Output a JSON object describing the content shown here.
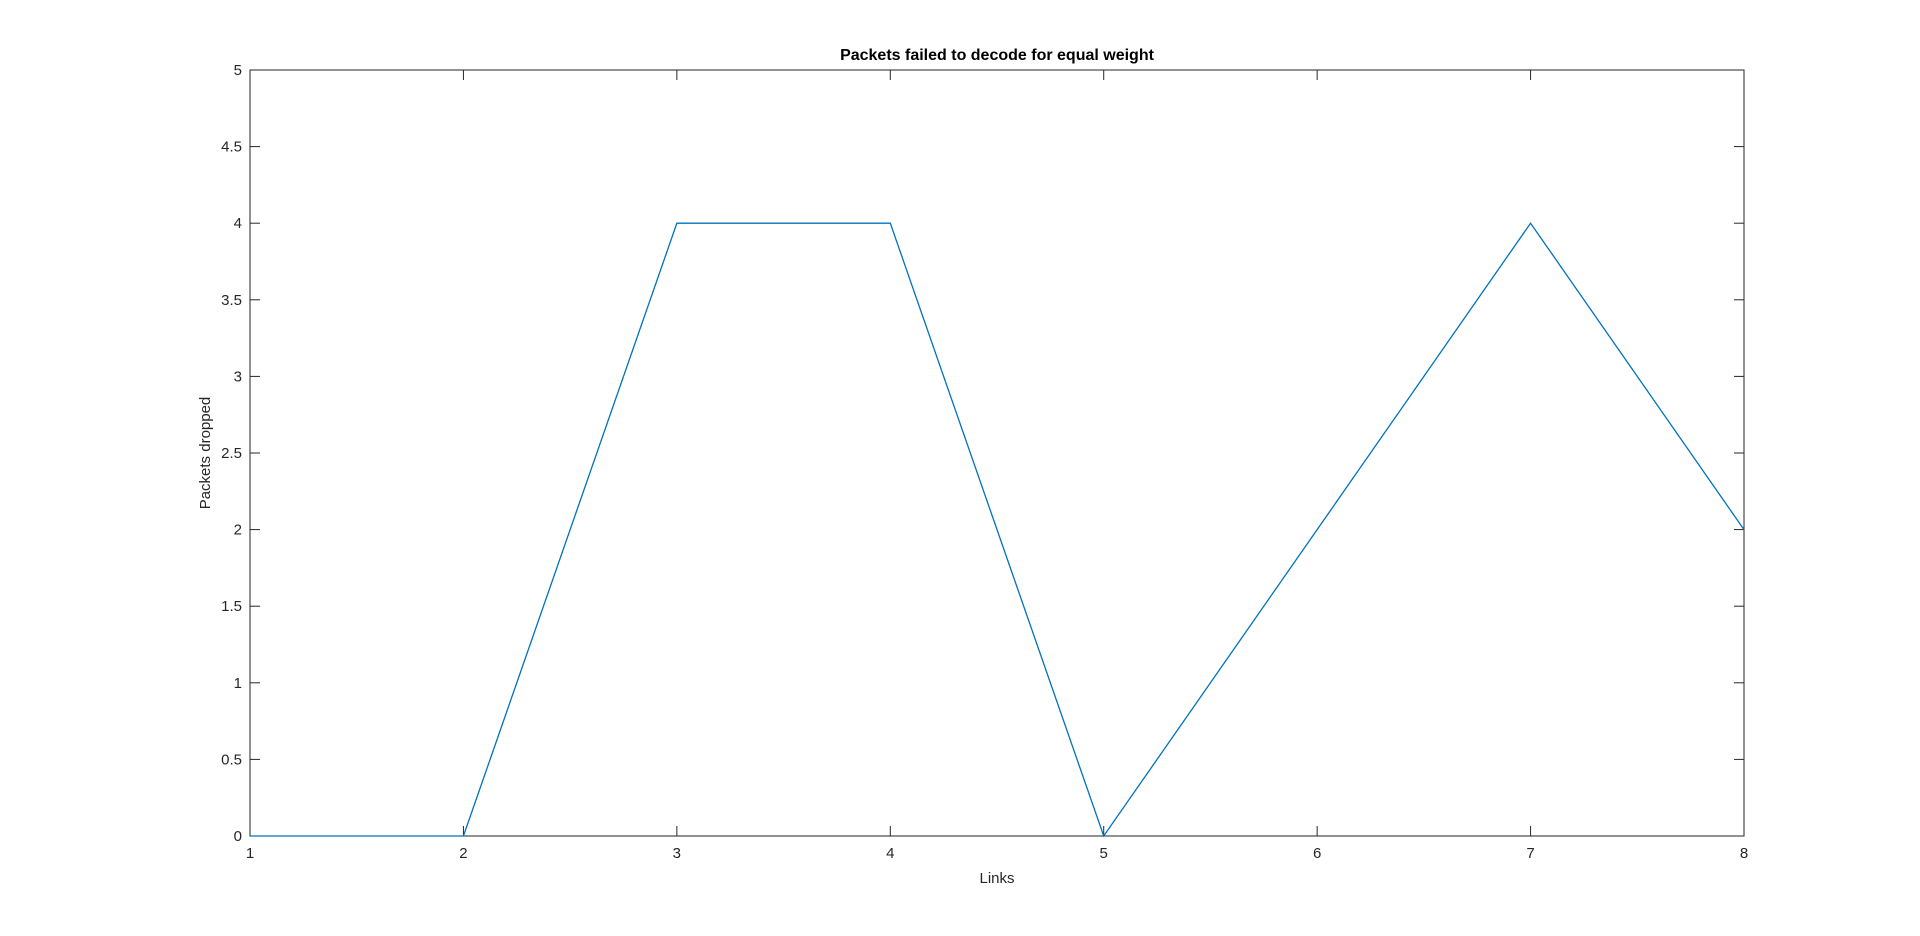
{
  "chart_data": {
    "type": "line",
    "title": "Packets failed to decode for equal weight",
    "xlabel": "Links",
    "ylabel": "Packets dropped",
    "xlim": [
      1,
      8
    ],
    "ylim": [
      0,
      5
    ],
    "xticks": [
      1,
      2,
      3,
      4,
      5,
      6,
      7,
      8
    ],
    "yticks": [
      0,
      0.5,
      1,
      1.5,
      2,
      2.5,
      3,
      3.5,
      4,
      4.5,
      5
    ],
    "xtick_labels": [
      "1",
      "2",
      "3",
      "4",
      "5",
      "6",
      "7",
      "8"
    ],
    "ytick_labels": [
      "0",
      "0.5",
      "1",
      "1.5",
      "2",
      "2.5",
      "3",
      "3.5",
      "4",
      "4.5",
      "5"
    ],
    "grid": false,
    "series": [
      {
        "x": [
          1,
          2,
          3,
          4,
          5,
          6,
          7,
          8
        ],
        "values": [
          0,
          0,
          4,
          4,
          0,
          2,
          4,
          2
        ],
        "color": "#0072BD"
      }
    ]
  }
}
